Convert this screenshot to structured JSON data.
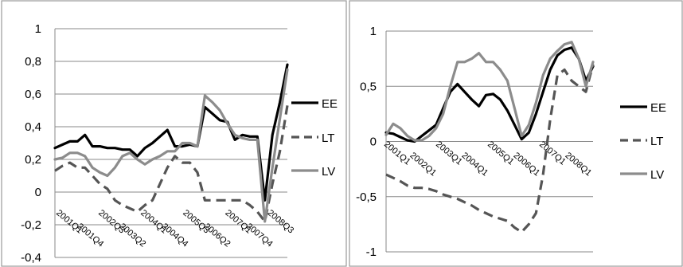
{
  "chart_data": [
    {
      "type": "line",
      "title": "",
      "xlabel": "",
      "ylabel": "",
      "ylim": [
        -0.4,
        1
      ],
      "y_ticks": [
        "1",
        "0,8",
        "0,6",
        "0,4",
        "0,2",
        "0",
        "-0,2",
        "-0,4"
      ],
      "x_tick_labels": [
        "2001Q1",
        "2001Q4",
        "2002Q3",
        "2003Q2",
        "2004Q1",
        "2004Q4",
        "2005Q3",
        "2006Q2",
        "2007Q1",
        "2007Q4",
        "2008Q3"
      ],
      "legend_position": "right",
      "grid": true,
      "series": [
        {
          "name": "EE",
          "color": "#000000",
          "style": "solid",
          "values": [
            0.27,
            0.29,
            0.31,
            0.31,
            0.35,
            0.28,
            0.28,
            0.27,
            0.27,
            0.26,
            0.26,
            0.22,
            0.27,
            0.3,
            0.34,
            0.38,
            0.28,
            0.28,
            0.29,
            0.28,
            0.52,
            0.48,
            0.44,
            0.43,
            0.32,
            0.35,
            0.34,
            0.34,
            -0.05,
            0.35,
            0.55,
            0.78
          ]
        },
        {
          "name": "LT",
          "color": "#555555",
          "style": "dashed",
          "values": [
            0.13,
            0.16,
            0.18,
            0.15,
            0.15,
            0.1,
            0.05,
            0.02,
            -0.05,
            -0.08,
            -0.1,
            -0.12,
            -0.08,
            -0.05,
            0.05,
            0.15,
            0.22,
            0.18,
            0.18,
            0.12,
            -0.05,
            -0.05,
            -0.05,
            -0.05,
            -0.05,
            -0.05,
            -0.08,
            -0.12,
            -0.18,
            0.05,
            0.25,
            0.53
          ]
        },
        {
          "name": "LV",
          "color": "#8c8c8c",
          "style": "solid",
          "values": [
            0.2,
            0.21,
            0.24,
            0.24,
            0.22,
            0.15,
            0.12,
            0.1,
            0.15,
            0.22,
            0.24,
            0.2,
            0.17,
            0.2,
            0.22,
            0.25,
            0.25,
            0.3,
            0.3,
            0.28,
            0.59,
            0.55,
            0.5,
            0.42,
            0.35,
            0.33,
            0.32,
            0.32,
            -0.18,
            0.15,
            0.45,
            0.75
          ]
        }
      ]
    },
    {
      "type": "line",
      "title": "",
      "xlabel": "",
      "ylabel": "",
      "ylim": [
        -1,
        1
      ],
      "y_ticks": [
        "1",
        "0,5",
        "0",
        "-0,5",
        "-1"
      ],
      "x_tick_labels": [
        "2001Q1",
        "2002Q1",
        "2003Q1",
        "2004Q1",
        "2005Q1",
        "2006Q1",
        "2007Q1",
        "2008Q1"
      ],
      "legend_position": "right",
      "grid": true,
      "series": [
        {
          "name": "EE",
          "color": "#000000",
          "style": "solid",
          "values": [
            0.08,
            0.07,
            0.04,
            0.01,
            0.0,
            0.05,
            0.1,
            0.15,
            0.3,
            0.45,
            0.52,
            0.45,
            0.38,
            0.32,
            0.42,
            0.43,
            0.38,
            0.28,
            0.15,
            0.02,
            0.08,
            0.25,
            0.45,
            0.65,
            0.78,
            0.83,
            0.85,
            0.75,
            0.55,
            0.68
          ]
        },
        {
          "name": "LT",
          "color": "#555555",
          "style": "dashed",
          "values": [
            -0.3,
            -0.33,
            -0.36,
            -0.4,
            -0.42,
            -0.42,
            -0.43,
            -0.45,
            -0.48,
            -0.5,
            -0.52,
            -0.55,
            -0.58,
            -0.62,
            -0.65,
            -0.68,
            -0.7,
            -0.72,
            -0.78,
            -0.82,
            -0.75,
            -0.65,
            -0.3,
            0.2,
            0.6,
            0.65,
            0.55,
            0.5,
            0.45,
            0.7
          ]
        },
        {
          "name": "LV",
          "color": "#8c8c8c",
          "style": "solid",
          "values": [
            0.06,
            0.16,
            0.12,
            0.05,
            0.01,
            0.01,
            0.05,
            0.12,
            0.25,
            0.5,
            0.72,
            0.72,
            0.75,
            0.8,
            0.72,
            0.72,
            0.65,
            0.55,
            0.3,
            0.05,
            0.15,
            0.35,
            0.6,
            0.75,
            0.82,
            0.88,
            0.9,
            0.75,
            0.5,
            0.72
          ]
        }
      ]
    }
  ]
}
